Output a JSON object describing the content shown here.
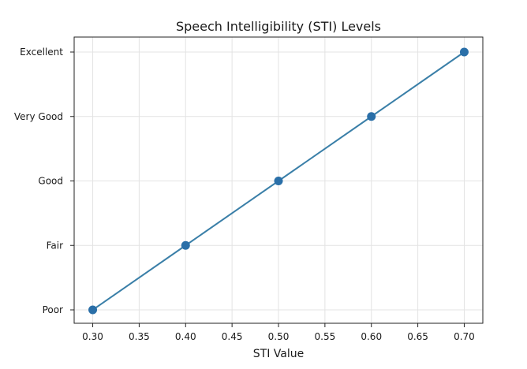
{
  "chart_data": {
    "type": "line",
    "title": "Speech Intelligibility (STI) Levels",
    "xlabel": "STI Value",
    "ylabel": "",
    "x": [
      0.3,
      0.4,
      0.5,
      0.6,
      0.7
    ],
    "y": [
      "Poor",
      "Fair",
      "Good",
      "Very Good",
      "Excellent"
    ],
    "xlim": [
      0.28,
      0.72
    ],
    "x_ticks": [
      "0.30",
      "0.35",
      "0.40",
      "0.45",
      "0.50",
      "0.55",
      "0.60",
      "0.65",
      "0.70"
    ],
    "y_categories": [
      "Poor",
      "Fair",
      "Good",
      "Very Good",
      "Excellent"
    ],
    "grid": true,
    "series": [
      {
        "x": [
          0.3,
          0.4,
          0.5,
          0.6,
          0.7
        ],
        "y": [
          "Poor",
          "Fair",
          "Good",
          "Very Good",
          "Excellent"
        ],
        "marker": "circle"
      }
    ],
    "colors": {
      "line": "#3a7fa8",
      "marker": "#2a6fa8"
    }
  }
}
